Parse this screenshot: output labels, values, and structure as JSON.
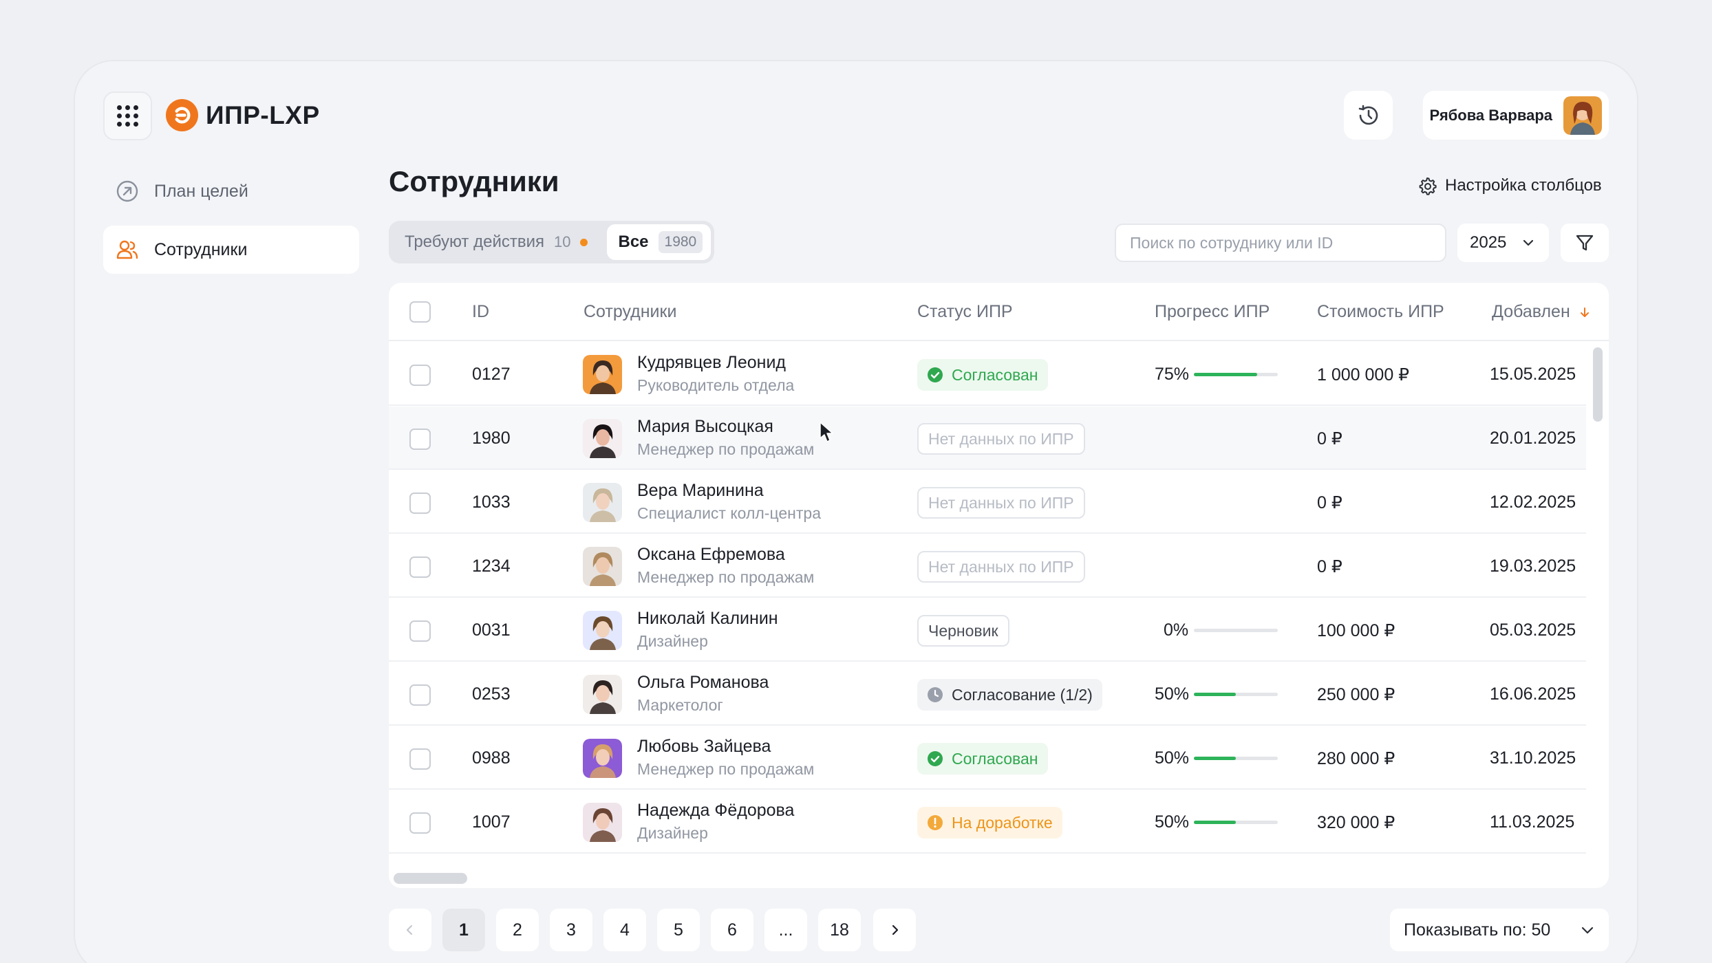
{
  "app": {
    "name": "ИПР-LXP",
    "brand_color": "#f0761e"
  },
  "header": {
    "user_name": "Рябова Варвара",
    "history_icon": "history-icon",
    "apps_icon": "apps-grid-icon"
  },
  "sidebar": {
    "items": [
      {
        "label": "План целей",
        "icon": "goal-arrow-icon",
        "active": false
      },
      {
        "label": "Сотрудники",
        "icon": "users-icon",
        "active": true
      }
    ]
  },
  "main": {
    "title": "Сотрудники",
    "column_settings": "Настройка столбцов",
    "segments": {
      "needs_action_label": "Требуют действия",
      "needs_action_count": "10",
      "all_label": "Все",
      "all_count": "1980"
    },
    "search": {
      "placeholder": "Поиск по сотруднику или ID",
      "value": ""
    },
    "year": "2025"
  },
  "table": {
    "headers": {
      "id": "ID",
      "employees": "Сотрудники",
      "status": "Статус ИПР",
      "progress": "Прогресс ИПР",
      "cost": "Стоимость ИПР",
      "added": "Добавлен"
    },
    "rows": [
      {
        "id": "0127",
        "name": "Кудрявцев Леонид",
        "role": "Руководитель отдела",
        "status": "Согласован",
        "status_type": "approved",
        "progress_label": "75%",
        "progress": 0.75,
        "cost": "1 000 000 ₽",
        "added": "15.05.2025"
      },
      {
        "id": "1980",
        "name": "Мария Высоцкая",
        "role": "Менеджер по продажам",
        "status": "Нет данных по ИПР",
        "status_type": "none",
        "progress_label": "",
        "progress": null,
        "cost": "0 ₽",
        "added": "20.01.2025"
      },
      {
        "id": "1033",
        "name": "Вера Маринина",
        "role": "Специалист колл-центра",
        "status": "Нет данных по ИПР",
        "status_type": "none",
        "progress_label": "",
        "progress": null,
        "cost": "0 ₽",
        "added": "12.02.2025"
      },
      {
        "id": "1234",
        "name": "Оксана Ефремова",
        "role": "Менеджер по продажам",
        "status": "Нет данных по ИПР",
        "status_type": "none",
        "progress_label": "",
        "progress": null,
        "cost": "0 ₽",
        "added": "19.03.2025"
      },
      {
        "id": "0031",
        "name": "Николай Калинин",
        "role": "Дизайнер",
        "status": "Черновик",
        "status_type": "draft",
        "progress_label": "0%",
        "progress": 0,
        "cost": "100 000 ₽",
        "added": "05.03.2025"
      },
      {
        "id": "0253",
        "name": "Ольга Романова",
        "role": "Маркетолог",
        "status": "Согласование (1/2)",
        "status_type": "pending",
        "progress_label": "50%",
        "progress": 0.5,
        "cost": "250 000 ₽",
        "added": "16.06.2025"
      },
      {
        "id": "0988",
        "name": "Любовь Зайцева",
        "role": "Менеджер по продажам",
        "status": "Согласован",
        "status_type": "approved",
        "progress_label": "50%",
        "progress": 0.5,
        "cost": "280 000 ₽",
        "added": "31.10.2025"
      },
      {
        "id": "1007",
        "name": "Надежда Фёдорова",
        "role": "Дизайнер",
        "status": "На доработке",
        "status_type": "rework",
        "progress_label": "50%",
        "progress": 0.5,
        "cost": "320 000 ₽",
        "added": "11.03.2025"
      }
    ]
  },
  "pagination": {
    "pages": [
      "1",
      "2",
      "3",
      "4",
      "5",
      "6",
      "...",
      "18"
    ],
    "current": "1",
    "per_page_label": "Показывать по: 50"
  },
  "colors": {
    "accent": "#f0761e",
    "approved": "#2fa84f",
    "rework": "#ec9419",
    "progress": "#2db35a"
  }
}
